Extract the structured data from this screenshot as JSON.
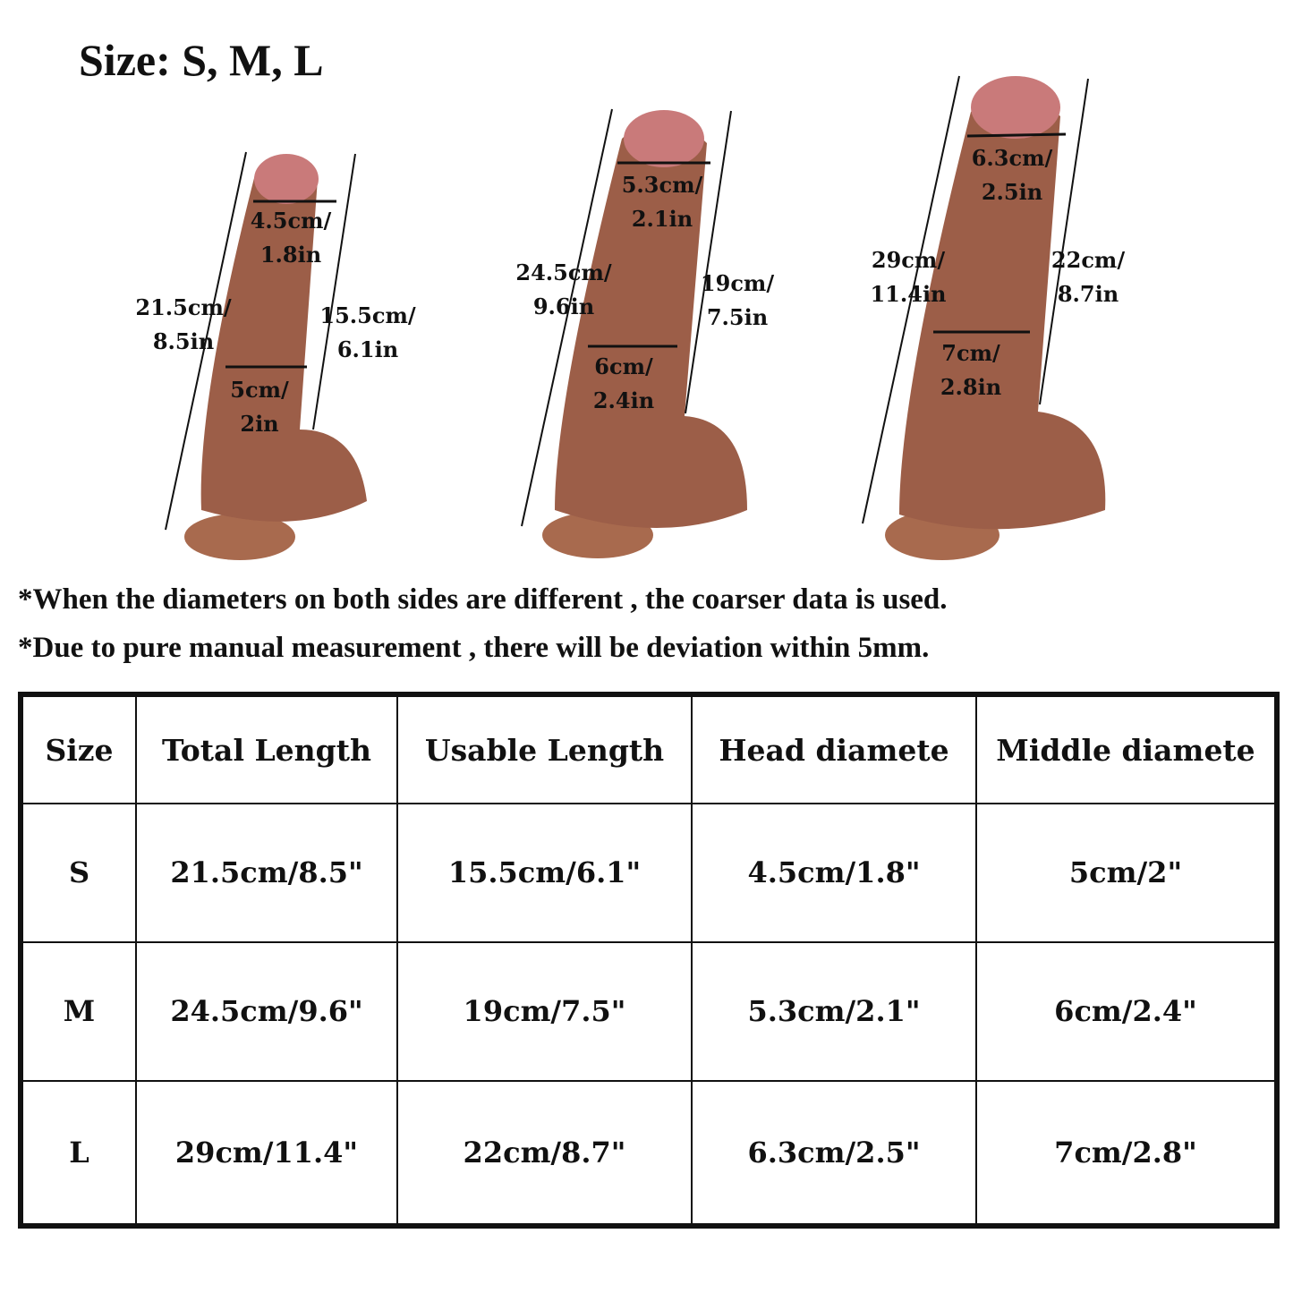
{
  "title": "Size: S, M, L",
  "colors": {
    "product_body": "#9c5e48",
    "product_tip": "#c97a7a",
    "base": "#a86a4e",
    "text": "#111111"
  },
  "figures": [
    {
      "size": "S",
      "head": [
        "4.5cm/",
        "1.8in"
      ],
      "total": [
        "21.5cm/",
        "8.5in"
      ],
      "usable": [
        "15.5cm/",
        "6.1in"
      ],
      "middle": [
        "5cm/",
        "2in"
      ]
    },
    {
      "size": "M",
      "head": [
        "5.3cm/",
        "2.1in"
      ],
      "total": [
        "24.5cm/",
        "9.6in"
      ],
      "usable": [
        "19cm/",
        "7.5in"
      ],
      "middle": [
        "6cm/",
        "2.4in"
      ]
    },
    {
      "size": "L",
      "head": [
        "6.3cm/",
        "2.5in"
      ],
      "total": [
        "29cm/",
        "11.4in"
      ],
      "usable": [
        "22cm/",
        "8.7in"
      ],
      "middle": [
        "7cm/",
        "2.8in"
      ]
    }
  ],
  "notes": [
    "*When the diameters on both sides are different , the coarser data is used.",
    "*Due to pure manual measurement , there will be deviation within 5mm."
  ],
  "table": {
    "headers": [
      "Size",
      "Total Length",
      "Usable  Length",
      "Head diamete",
      "Middle diamete"
    ],
    "rows": [
      [
        "S",
        "21.5cm/8.5\"",
        "15.5cm/6.1\"",
        "4.5cm/1.8\"",
        "5cm/2\""
      ],
      [
        "M",
        "24.5cm/9.6\"",
        "19cm/7.5\"",
        "5.3cm/2.1\"",
        "6cm/2.4\""
      ],
      [
        "L",
        "29cm/11.4\"",
        "22cm/8.7\"",
        "6.3cm/2.5\"",
        "7cm/2.8\""
      ]
    ]
  }
}
